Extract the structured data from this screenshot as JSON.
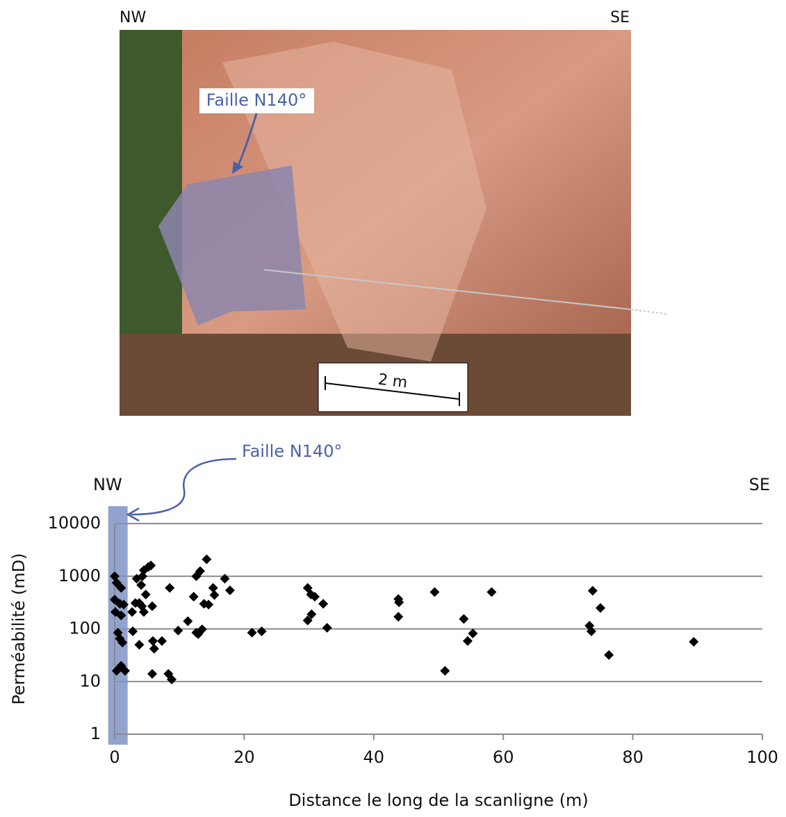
{
  "photo": {
    "left_label": "NW",
    "right_label": "SE",
    "fault_label": "Faille N140°",
    "scale_label": "2 m"
  },
  "chart_data": {
    "type": "scatter",
    "annotations": {
      "left": "NW",
      "right": "SE",
      "fault": "Faille N140°"
    },
    "xlabel": "Distance le long de la scanligne (m)",
    "ylabel": "Perméabilité (mD)",
    "xlim": [
      0,
      100
    ],
    "xticks": [
      0,
      20,
      40,
      60,
      80,
      100
    ],
    "ylim": [
      1,
      10000
    ],
    "yticks": [
      1,
      10,
      100,
      1000,
      10000
    ],
    "log_y": true,
    "grid": true,
    "shaded_band": [
      -1,
      2
    ],
    "band_color": "#7f93c6",
    "series": [
      {
        "color": "#000000",
        "x": [
          0,
          0.3,
          1,
          0,
          0.8,
          1.4,
          0.1,
          1,
          0.5,
          0.8,
          1.2,
          1,
          0.3,
          1.6,
          2.7,
          3.2,
          3.8,
          3.4,
          4.1,
          4.3,
          4.5,
          5.2,
          5.6,
          4.2,
          4.5,
          4.8,
          5.8,
          2.8,
          3.8,
          5.9,
          6.1,
          7.3,
          5.8,
          8.3,
          8.8,
          8.5,
          9.8,
          11.3,
          12.6,
          12.9,
          12.2,
          12.6,
          13.2,
          13.5,
          13.8,
          14.2,
          14.5,
          15.2,
          15.4,
          17.0,
          17.8,
          21.2,
          22.7,
          29.8,
          30.3,
          30.9,
          30.4,
          29.8,
          32.2,
          32.8,
          43.8,
          43.9,
          43.8,
          49.4,
          51.0,
          53.9,
          54.5,
          55.3,
          58.2,
          73.3,
          73.6,
          73.8,
          75.0,
          76.3,
          89.4
        ],
        "values": [
          1000,
          750,
          600,
          360,
          300,
          290,
          210,
          180,
          85,
          65,
          55,
          20,
          16,
          16,
          210,
          310,
          310,
          900,
          680,
          1000,
          1300,
          1500,
          1600,
          270,
          210,
          450,
          270,
          90,
          50,
          59,
          42,
          59,
          14,
          14,
          11,
          600,
          93,
          140,
          85,
          80,
          410,
          1000,
          1250,
          98,
          300,
          2100,
          290,
          600,
          440,
          900,
          540,
          85,
          90,
          600,
          450,
          410,
          190,
          145,
          300,
          105,
          370,
          320,
          170,
          500,
          16,
          155,
          59,
          82,
          500,
          115,
          90,
          530,
          250,
          32,
          57
        ]
      }
    ]
  }
}
